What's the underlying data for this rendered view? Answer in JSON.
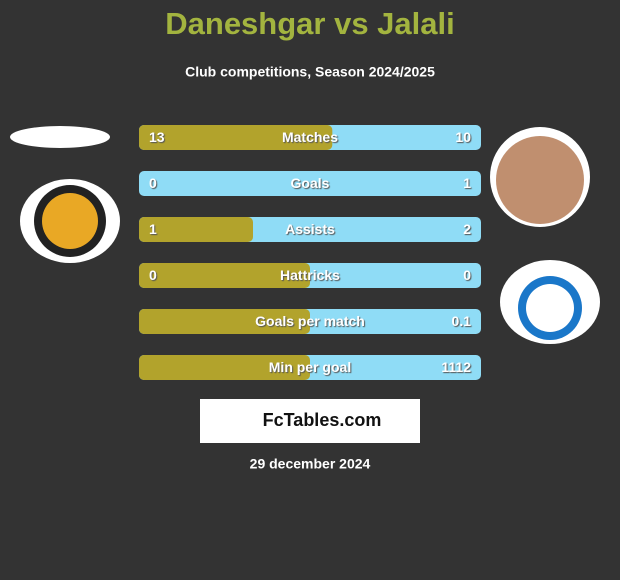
{
  "title": "Daneshgar vs Jalali",
  "subtitle": "Club competitions, Season 2024/2025",
  "rows": [
    {
      "label": "Matches",
      "left": 13,
      "right": 10
    },
    {
      "label": "Goals",
      "left": 0,
      "right": 1
    },
    {
      "label": "Assists",
      "left": 1,
      "right": 2
    },
    {
      "label": "Hattricks",
      "left": 0,
      "right": 0
    },
    {
      "label": "Goals per match",
      "left": null,
      "right": 0.1
    },
    {
      "label": "Min per goal",
      "left": null,
      "right": 1112
    }
  ],
  "brand": "FcTables.com",
  "date": "29 december 2024"
}
